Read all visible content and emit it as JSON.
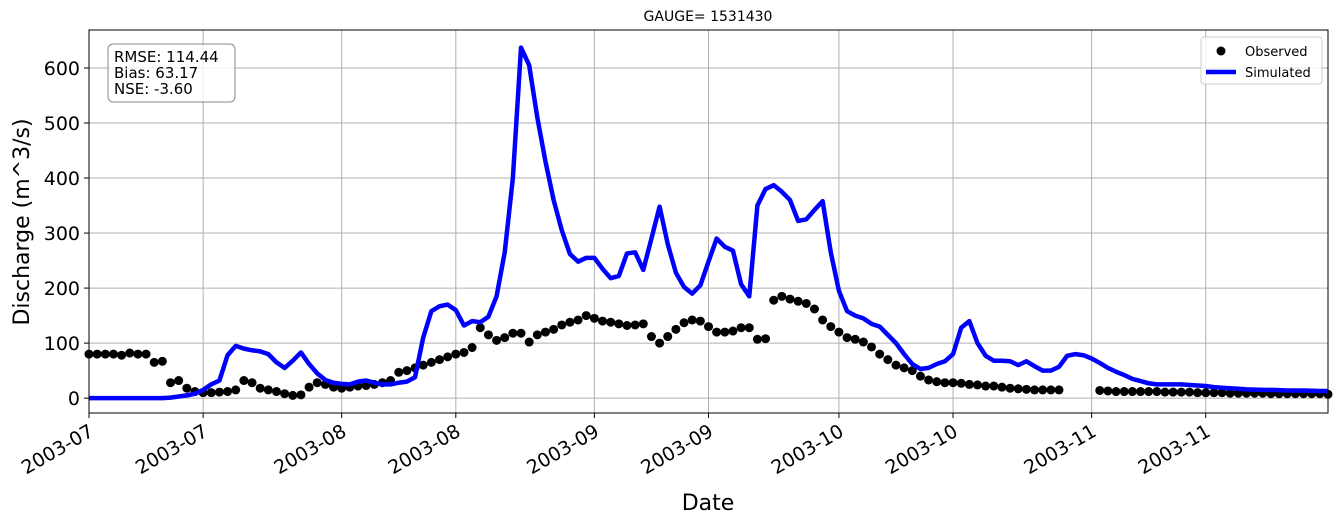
{
  "chart_data": {
    "type": "line",
    "title": "GAUGE= 1531430",
    "xlabel": "Date",
    "ylabel": "Discharge (m^3/s)",
    "annotation": [
      "RMSE: 114.44",
      "Bias: 63.17",
      "NSE: -3.60"
    ],
    "legend": "upper right",
    "grid": true,
    "x": [
      "2003-07-01",
      "2003-07-02",
      "2003-07-03",
      "2003-07-04",
      "2003-07-05",
      "2003-07-06",
      "2003-07-07",
      "2003-07-08",
      "2003-07-09",
      "2003-07-10",
      "2003-07-11",
      "2003-07-12",
      "2003-07-13",
      "2003-07-14",
      "2003-07-15",
      "2003-07-16",
      "2003-07-17",
      "2003-07-18",
      "2003-07-19",
      "2003-07-20",
      "2003-07-21",
      "2003-07-22",
      "2003-07-23",
      "2003-07-24",
      "2003-07-25",
      "2003-07-26",
      "2003-07-27",
      "2003-07-28",
      "2003-07-29",
      "2003-07-30",
      "2003-07-31",
      "2003-08-01",
      "2003-08-02",
      "2003-08-03",
      "2003-08-04",
      "2003-08-05",
      "2003-08-06",
      "2003-08-07",
      "2003-08-08",
      "2003-08-09",
      "2003-08-10",
      "2003-08-11",
      "2003-08-12",
      "2003-08-13",
      "2003-08-14",
      "2003-08-15",
      "2003-08-16",
      "2003-08-17",
      "2003-08-18",
      "2003-08-19",
      "2003-08-20",
      "2003-08-21",
      "2003-08-22",
      "2003-08-23",
      "2003-08-24",
      "2003-08-25",
      "2003-08-26",
      "2003-08-27",
      "2003-08-28",
      "2003-08-29",
      "2003-08-30",
      "2003-08-31",
      "2003-09-01",
      "2003-09-02",
      "2003-09-03",
      "2003-09-04",
      "2003-09-05",
      "2003-09-06",
      "2003-09-07",
      "2003-09-08",
      "2003-09-09",
      "2003-09-10",
      "2003-09-11",
      "2003-09-12",
      "2003-09-13",
      "2003-09-14",
      "2003-09-15",
      "2003-09-16",
      "2003-09-17",
      "2003-09-18",
      "2003-09-19",
      "2003-09-20",
      "2003-09-21",
      "2003-09-22",
      "2003-09-23",
      "2003-09-24",
      "2003-09-25",
      "2003-09-26",
      "2003-09-27",
      "2003-09-28",
      "2003-09-29",
      "2003-09-30",
      "2003-10-01",
      "2003-10-02",
      "2003-10-03",
      "2003-10-04",
      "2003-10-05",
      "2003-10-06",
      "2003-10-07",
      "2003-10-08",
      "2003-10-09",
      "2003-10-10",
      "2003-10-11",
      "2003-10-12",
      "2003-10-13",
      "2003-10-14",
      "2003-10-15",
      "2003-10-16",
      "2003-10-17",
      "2003-10-18",
      "2003-10-19",
      "2003-10-20",
      "2003-10-21",
      "2003-10-22",
      "2003-10-23",
      "2003-10-24",
      "2003-10-25",
      "2003-10-26",
      "2003-10-27",
      "2003-10-28",
      "2003-10-29",
      "2003-10-30",
      "2003-10-31",
      "2003-11-01",
      "2003-11-02",
      "2003-11-03",
      "2003-11-04",
      "2003-11-05",
      "2003-11-06",
      "2003-11-07",
      "2003-11-08",
      "2003-11-09",
      "2003-11-10",
      "2003-11-11",
      "2003-11-12",
      "2003-11-13",
      "2003-11-14",
      "2003-11-15",
      "2003-11-16",
      "2003-11-17",
      "2003-11-18",
      "2003-11-19",
      "2003-11-20",
      "2003-11-21",
      "2003-11-22",
      "2003-11-23",
      "2003-11-24",
      "2003-11-25",
      "2003-11-26",
      "2003-11-27",
      "2003-11-28",
      "2003-11-29",
      "2003-11-30"
    ],
    "series": [
      {
        "name": "Observed",
        "type": "scatter",
        "color": "#000000",
        "values": [
          80,
          80,
          80,
          80,
          78,
          82,
          80,
          80,
          65,
          67,
          28,
          32,
          18,
          12,
          10,
          10,
          11,
          12,
          15,
          32,
          28,
          18,
          15,
          12,
          8,
          5,
          6,
          20,
          28,
          25,
          20,
          18,
          20,
          22,
          23,
          25,
          28,
          32,
          47,
          50,
          55,
          60,
          65,
          70,
          75,
          80,
          83,
          92,
          128,
          115,
          105,
          110,
          118,
          118,
          102,
          115,
          120,
          125,
          133,
          138,
          142,
          150,
          145,
          140,
          138,
          135,
          132,
          133,
          135,
          112,
          100,
          112,
          125,
          137,
          142,
          140,
          130,
          120,
          120,
          122,
          128,
          128,
          107,
          108,
          178,
          185,
          180,
          176,
          172,
          162,
          142,
          130,
          120,
          110,
          107,
          102,
          93,
          80,
          70,
          60,
          55,
          50,
          40,
          33,
          30,
          28,
          28,
          27,
          25,
          24,
          22,
          22,
          20,
          18,
          17,
          16,
          15,
          15,
          15,
          15,
          null,
          null,
          null,
          null,
          14,
          13,
          12,
          12,
          12,
          12,
          12,
          12,
          11,
          11,
          11,
          11,
          10,
          10,
          10,
          10,
          9,
          9,
          9,
          9,
          9,
          8,
          8,
          8,
          8,
          8,
          8,
          8,
          7
        ]
      },
      {
        "name": "Simulated",
        "type": "line",
        "color": "#0000ff",
        "values": [
          0,
          0,
          0,
          0,
          0,
          0,
          0,
          0,
          0,
          0,
          1,
          3,
          5,
          8,
          15,
          25,
          32,
          78,
          95,
          90,
          87,
          85,
          80,
          65,
          55,
          68,
          83,
          62,
          45,
          33,
          28,
          26,
          25,
          30,
          32,
          28,
          25,
          25,
          28,
          30,
          38,
          110,
          158,
          167,
          170,
          160,
          132,
          140,
          138,
          148,
          185,
          265,
          400,
          637,
          605,
          510,
          430,
          360,
          305,
          262,
          248,
          255,
          255,
          235,
          218,
          222,
          263,
          265,
          233,
          290,
          348,
          280,
          228,
          202,
          190,
          205,
          248,
          290,
          275,
          268,
          207,
          185,
          350,
          380,
          387,
          375,
          360,
          322,
          325,
          342,
          358,
          265,
          195,
          158,
          150,
          145,
          135,
          130,
          115,
          100,
          80,
          62,
          53,
          55,
          62,
          67,
          80,
          128,
          140,
          100,
          77,
          68,
          68,
          67,
          60,
          67,
          58,
          50,
          50,
          57,
          77,
          80,
          78,
          72,
          64,
          55,
          48,
          42,
          35,
          31,
          27,
          25,
          25,
          25,
          25,
          24,
          23,
          22,
          20,
          19,
          18,
          17,
          16,
          15.5,
          15,
          15,
          14.5,
          14,
          14,
          14,
          13.5,
          13,
          13
        ]
      }
    ],
    "xlim": [
      "2003-07-01",
      "2003-11-30"
    ],
    "xticks": [
      {
        "value": "2003-07-01",
        "label": "2003-07"
      },
      {
        "value": "2003-07-15",
        "label": "2003-07"
      },
      {
        "value": "2003-08-01",
        "label": "2003-08"
      },
      {
        "value": "2003-08-15",
        "label": "2003-08"
      },
      {
        "value": "2003-09-01",
        "label": "2003-09"
      },
      {
        "value": "2003-09-15",
        "label": "2003-09"
      },
      {
        "value": "2003-10-01",
        "label": "2003-10"
      },
      {
        "value": "2003-10-15",
        "label": "2003-10"
      },
      {
        "value": "2003-11-01",
        "label": "2003-11"
      },
      {
        "value": "2003-11-15",
        "label": "2003-11"
      }
    ],
    "ylim": [
      -27,
      669
    ],
    "yticks": [
      0,
      100,
      200,
      300,
      400,
      500,
      600
    ]
  }
}
